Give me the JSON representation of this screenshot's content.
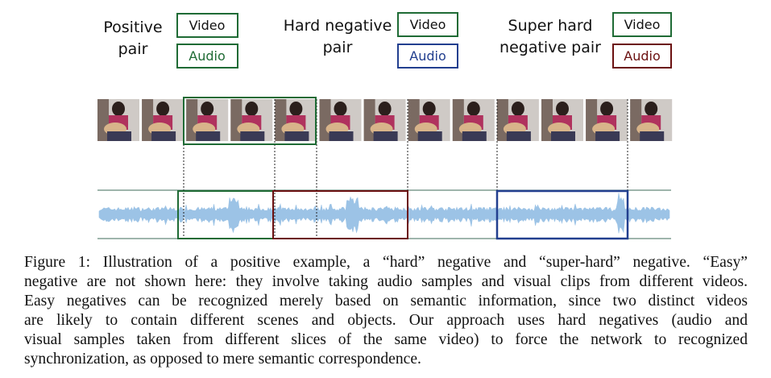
{
  "legend": [
    {
      "title_lines": [
        "Positive",
        "pair"
      ],
      "video": "Video",
      "audio": "Audio"
    },
    {
      "title_lines": [
        "Hard negative",
        "pair"
      ],
      "video": "Video",
      "audio": "Audio"
    },
    {
      "title_lines": [
        "Super hard",
        "negative pair"
      ],
      "video": "Video",
      "audio": "Audio"
    }
  ],
  "caption": {
    "lines": [
      "Figure 1: Illustration of a positive example, a “hard” negative and “super-hard” negative. “Easy”",
      "negative are not shown here: they involve taking audio samples and visual clips from different videos.",
      "Easy negatives can be recognized merely based on semantic information, since two distinct videos",
      "are likely to contain different scenes and objects.  Our approach uses hard negatives (audio and",
      "visual samples taken from different slices of the same video) to force the network to recognized",
      "synchronization, as opposed to mere semantic correspondence."
    ]
  }
}
